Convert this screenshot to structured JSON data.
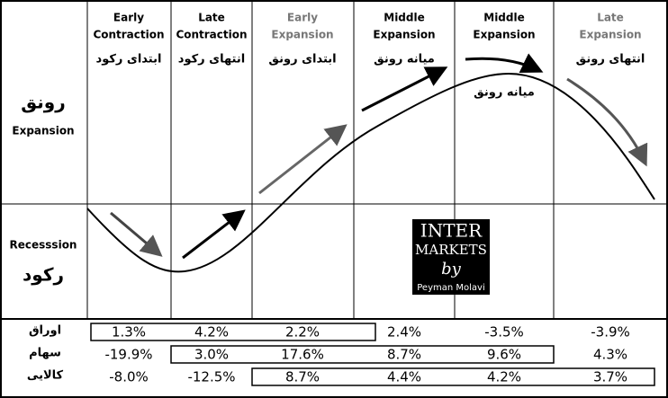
{
  "rows": {
    "expansion": {
      "fa": "رونق",
      "en": "Expansion"
    },
    "recession": {
      "en": "Recesssion",
      "fa": "رکود"
    }
  },
  "phases": [
    {
      "line1": "Early",
      "line2": "Contraction",
      "fa": "ابتدای رکود"
    },
    {
      "line1": "Late",
      "line2": "Contraction",
      "fa": "انتهای رکود"
    },
    {
      "line1": "Early",
      "line2": "Expansion",
      "fa": "ابتدای رونق"
    },
    {
      "line1": "Middle",
      "line2": "Expansion",
      "fa": "میانه رونق"
    },
    {
      "line1": "Middle",
      "line2": "Expansion",
      "fa": "میانه رونق"
    },
    {
      "line1": "Late",
      "line2": "Expansion",
      "fa": "انتهای رونق"
    }
  ],
  "logo": {
    "line1": "INTER",
    "line2": "MARKETS",
    "line3": "by",
    "line4": "Peyman Molavi"
  },
  "table": {
    "row_labels": [
      "اوراق",
      "سهام",
      "کالایی"
    ],
    "rows": [
      [
        "1.3%",
        "4.2%",
        "2.2%",
        "2.4%",
        "-3.5%",
        "-3.9%"
      ],
      [
        "-19.9%",
        "3.0%",
        "17.6%",
        "8.7%",
        "9.6%",
        "4.3%"
      ],
      [
        "-8.0%",
        "-12.5%",
        "8.7%",
        "4.4%",
        "4.2%",
        "3.7%"
      ]
    ]
  }
}
